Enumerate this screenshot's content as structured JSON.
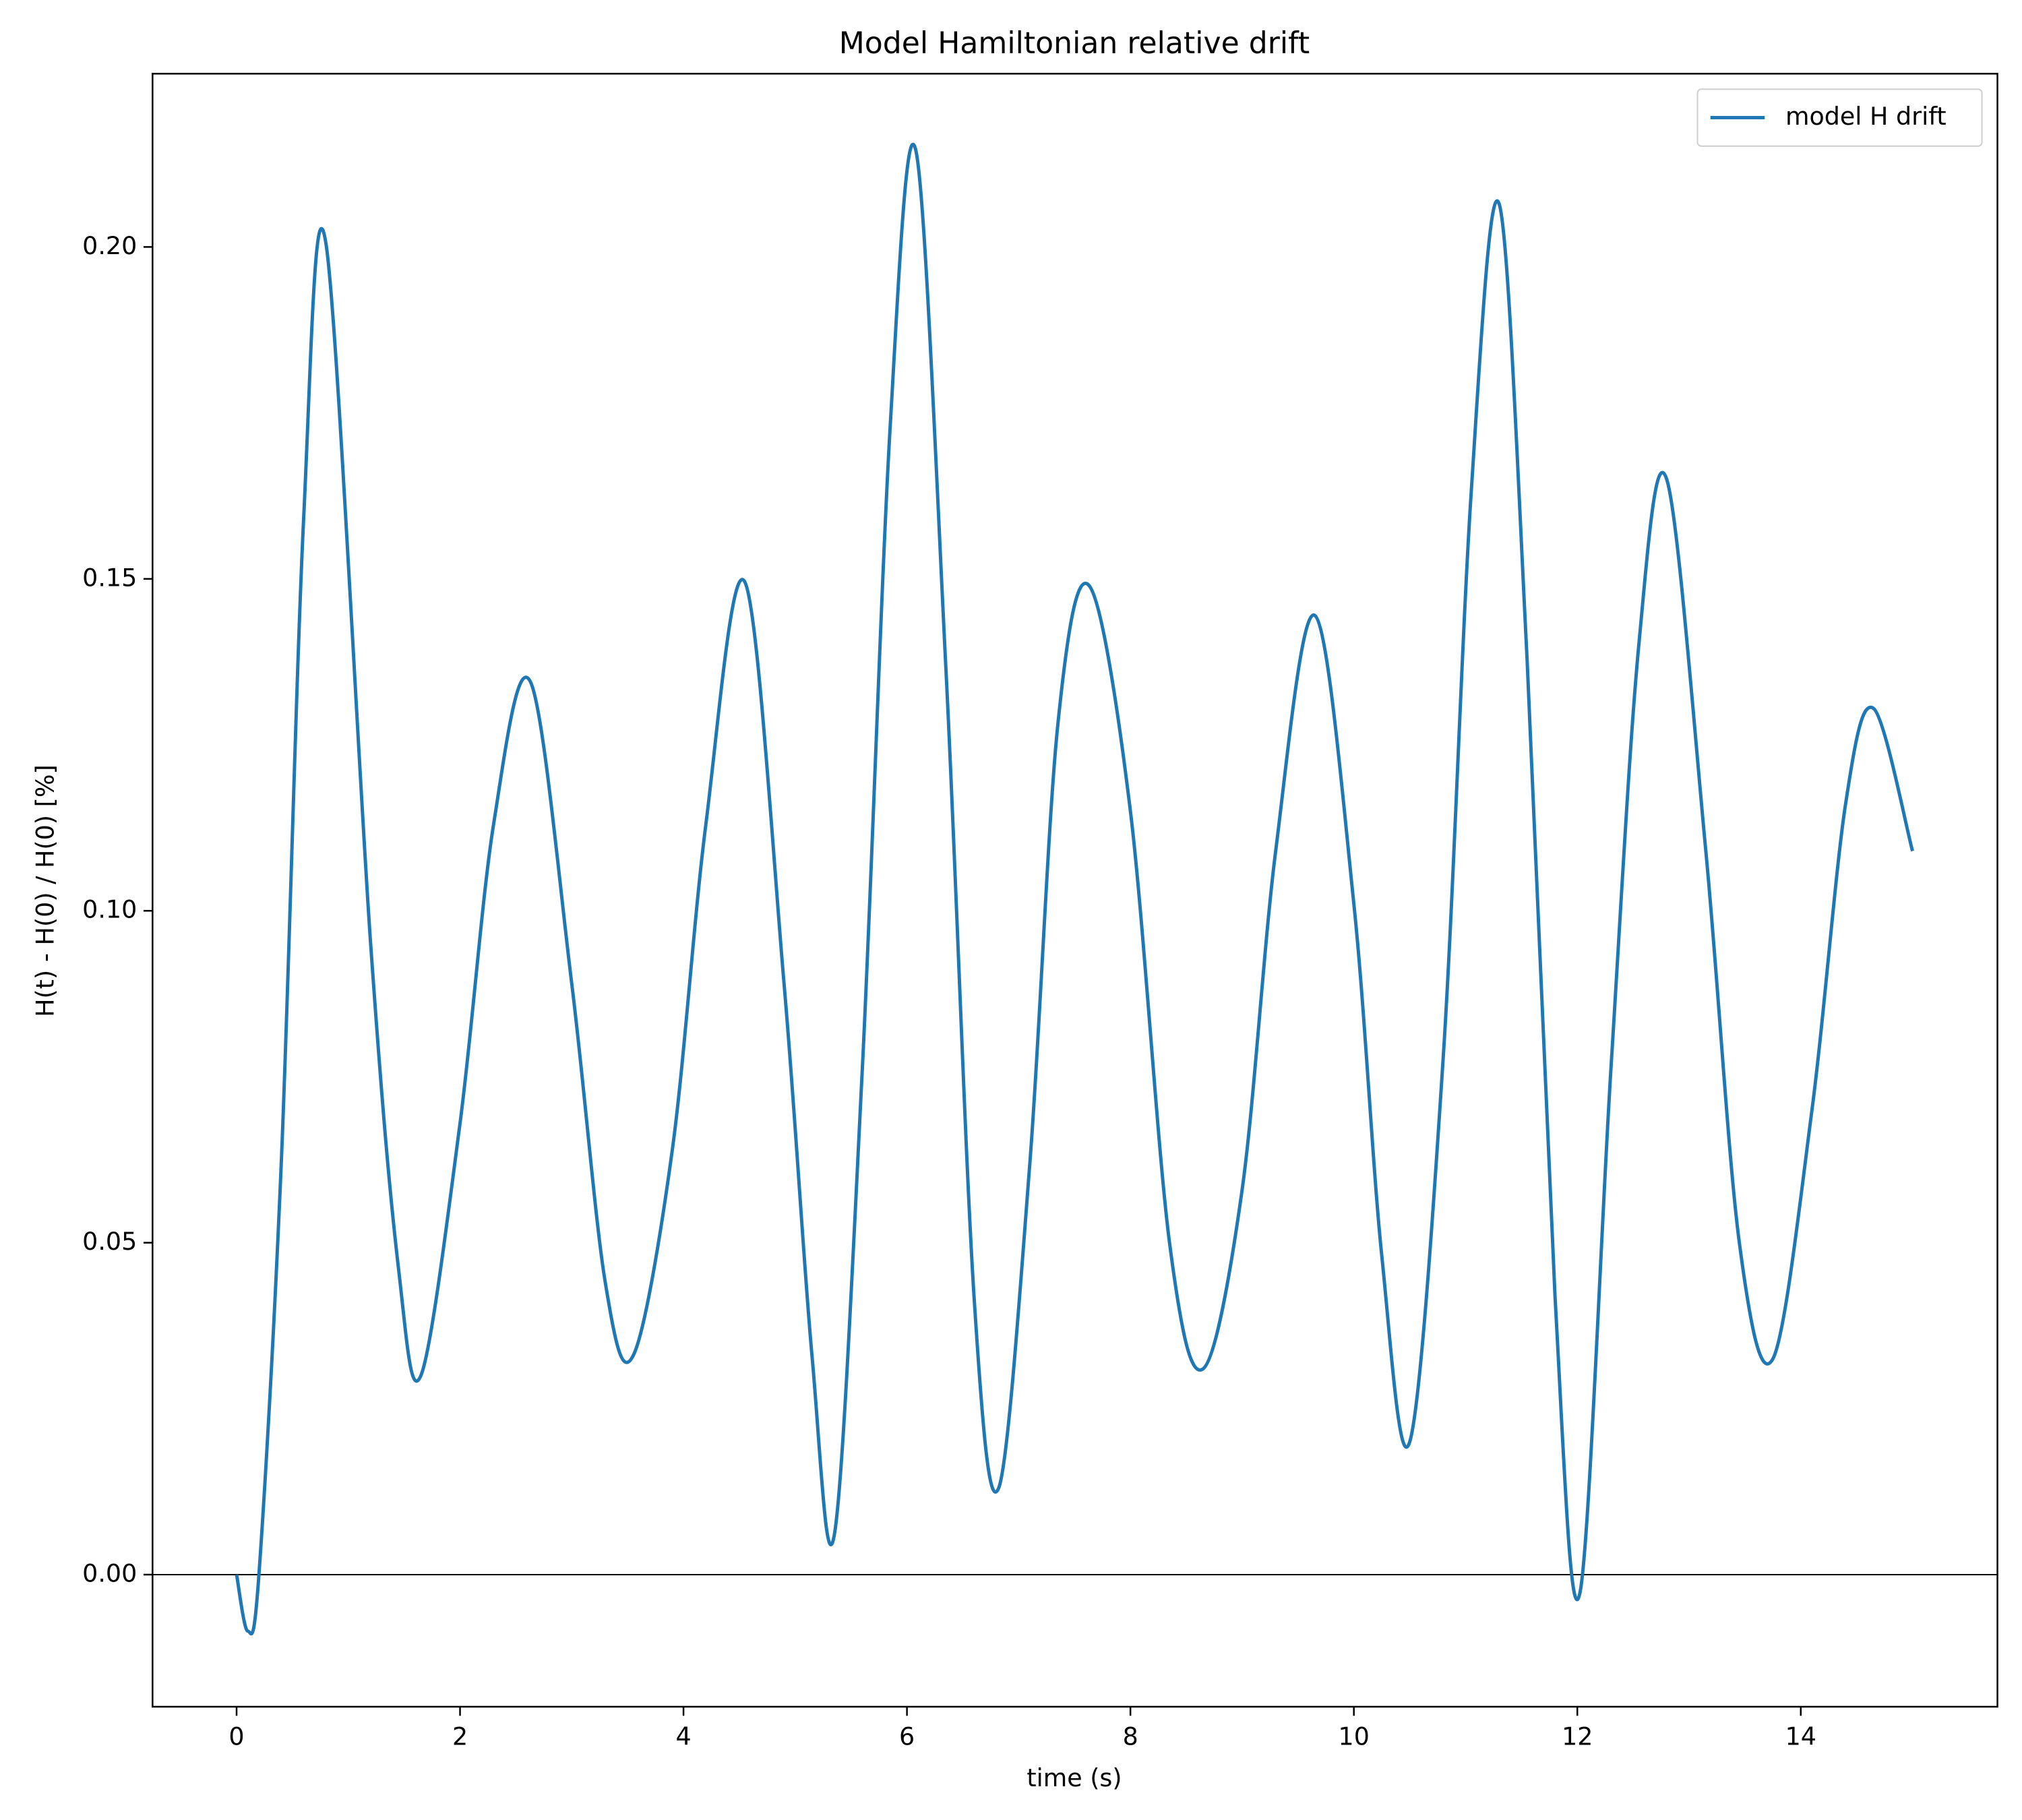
{
  "chart_data": {
    "type": "line",
    "title": "Model Hamiltonian relative drift",
    "xlabel": "time (s)",
    "ylabel": "H(t) - H(0) / H(0) [%]",
    "x": [
      0,
      0.1,
      0.2,
      0.4,
      0.6,
      0.8,
      1.2,
      1.45,
      1.65,
      2.0,
      2.3,
      2.63,
      3.0,
      3.3,
      3.55,
      3.9,
      4.2,
      4.55,
      4.9,
      5.15,
      5.35,
      5.6,
      5.85,
      6.08,
      6.35,
      6.6,
      6.82,
      7.1,
      7.35,
      7.63,
      8.0,
      8.35,
      8.65,
      9.0,
      9.3,
      9.65,
      10.0,
      10.25,
      10.5,
      10.8,
      11.05,
      11.3,
      11.55,
      11.8,
      12.02,
      12.3,
      12.55,
      12.8,
      13.15,
      13.45,
      13.75,
      14.1,
      14.4,
      14.65,
      15.0
    ],
    "series": [
      {
        "name": "model H drift",
        "color": "#1f77b4",
        "values": [
          0,
          -0.0085,
          0.0,
          0.062,
          0.159,
          0.2005,
          0.095,
          0.046,
          0.03,
          0.068,
          0.113,
          0.1345,
          0.089,
          0.044,
          0.033,
          0.064,
          0.113,
          0.1495,
          0.089,
          0.033,
          0.006,
          0.076,
          0.173,
          0.2145,
          0.136,
          0.042,
          0.013,
          0.062,
          0.128,
          0.149,
          0.115,
          0.05,
          0.031,
          0.058,
          0.109,
          0.1445,
          0.101,
          0.048,
          0.02,
          0.078,
          0.163,
          0.2065,
          0.138,
          0.042,
          -0.003,
          0.076,
          0.14,
          0.165,
          0.109,
          0.05,
          0.0325,
          0.07,
          0.116,
          0.1305,
          0.109
        ]
      }
    ],
    "axhline": 0,
    "xlim": [
      -0.752,
      15.76
    ],
    "ylim": [
      -0.0199,
      0.2261
    ],
    "xticks": [
      0,
      2,
      4,
      6,
      8,
      10,
      12,
      14
    ],
    "yticks": [
      {
        "value": 0,
        "label": "0.00"
      },
      {
        "value": 0.05,
        "label": "0.05"
      },
      {
        "value": 0.1,
        "label": "0.10"
      },
      {
        "value": 0.15,
        "label": "0.15"
      },
      {
        "value": 0.2,
        "label": "0.20"
      }
    ],
    "legend": "upper right"
  }
}
